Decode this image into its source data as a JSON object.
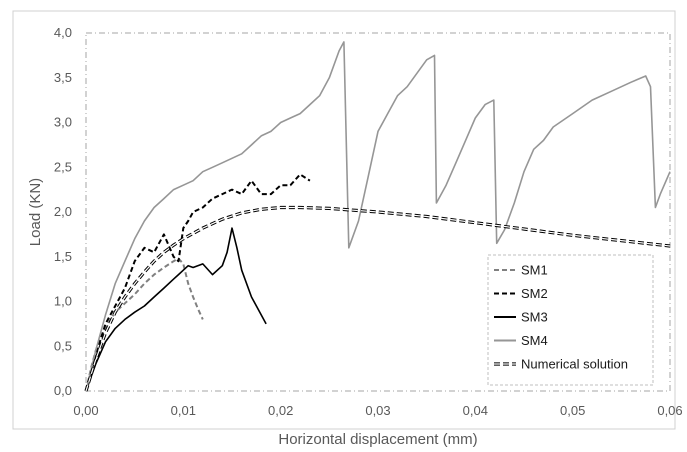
{
  "chart_data": {
    "type": "line",
    "xlabel": "Horizontal displacement (mm)",
    "ylabel": "Load (KN)",
    "xlim": [
      0,
      0.06
    ],
    "ylim": [
      0,
      4.0
    ],
    "x_ticks": [
      "0,00",
      "0,01",
      "0,02",
      "0,03",
      "0,04",
      "0,05",
      "0,06"
    ],
    "y_ticks": [
      "0,0",
      "0,5",
      "1,0",
      "1,5",
      "2,0",
      "2,5",
      "3,0",
      "3,5",
      "4,0"
    ],
    "grid": false,
    "legend_position": "bottom-right",
    "series": [
      {
        "name": "SM1",
        "color": "#808080",
        "dash": "dashed",
        "x": [
          0,
          0.0005,
          0.001,
          0.0015,
          0.002,
          0.0025,
          0.003,
          0.004,
          0.005,
          0.006,
          0.007,
          0.008,
          0.009,
          0.0095,
          0.01,
          0.0105,
          0.011,
          0.0115,
          0.012
        ],
        "y": [
          0.0,
          0.25,
          0.45,
          0.6,
          0.7,
          0.8,
          0.88,
          0.98,
          1.08,
          1.2,
          1.3,
          1.38,
          1.45,
          1.48,
          1.42,
          1.2,
          1.05,
          0.92,
          0.8
        ]
      },
      {
        "name": "SM2",
        "color": "#000000",
        "dash": "dashed",
        "x": [
          0,
          0.001,
          0.002,
          0.003,
          0.004,
          0.005,
          0.006,
          0.007,
          0.008,
          0.009,
          0.0095,
          0.01,
          0.0105,
          0.011,
          0.012,
          0.013,
          0.014,
          0.015,
          0.016,
          0.017,
          0.018,
          0.019,
          0.02,
          0.021,
          0.022,
          0.023
        ],
        "y": [
          0.0,
          0.4,
          0.75,
          0.95,
          1.15,
          1.45,
          1.6,
          1.55,
          1.75,
          1.5,
          1.45,
          1.82,
          1.9,
          2.0,
          2.05,
          2.15,
          2.2,
          2.25,
          2.2,
          2.35,
          2.2,
          2.2,
          2.3,
          2.3,
          2.42,
          2.35
        ]
      },
      {
        "name": "SM3",
        "color": "#000000",
        "dash": "solid",
        "x": [
          0,
          0.001,
          0.002,
          0.003,
          0.004,
          0.005,
          0.006,
          0.007,
          0.008,
          0.009,
          0.0095,
          0.01,
          0.0105,
          0.011,
          0.012,
          0.013,
          0.014,
          0.0145,
          0.015,
          0.0155,
          0.016,
          0.017,
          0.0185
        ],
        "y": [
          0.0,
          0.3,
          0.55,
          0.7,
          0.8,
          0.88,
          0.95,
          1.05,
          1.15,
          1.25,
          1.3,
          1.35,
          1.4,
          1.38,
          1.42,
          1.3,
          1.4,
          1.55,
          1.82,
          1.6,
          1.35,
          1.05,
          0.75
        ]
      },
      {
        "name": "SM4",
        "color": "#969696",
        "dash": "solid",
        "x": [
          0,
          0.001,
          0.002,
          0.003,
          0.004,
          0.005,
          0.006,
          0.007,
          0.008,
          0.009,
          0.01,
          0.011,
          0.012,
          0.013,
          0.014,
          0.015,
          0.016,
          0.017,
          0.018,
          0.019,
          0.02,
          0.021,
          0.022,
          0.023,
          0.024,
          0.025,
          0.026,
          0.0265,
          0.027,
          0.028,
          0.029,
          0.03,
          0.031,
          0.032,
          0.033,
          0.034,
          0.035,
          0.0358,
          0.036,
          0.037,
          0.038,
          0.039,
          0.04,
          0.041,
          0.0419,
          0.0422,
          0.043,
          0.044,
          0.045,
          0.046,
          0.047,
          0.048,
          0.05,
          0.052,
          0.054,
          0.056,
          0.0575,
          0.058,
          0.0585,
          0.059,
          0.06
        ],
        "y": [
          0.0,
          0.45,
          0.85,
          1.2,
          1.45,
          1.7,
          1.9,
          2.05,
          2.15,
          2.25,
          2.3,
          2.35,
          2.45,
          2.5,
          2.55,
          2.6,
          2.65,
          2.75,
          2.85,
          2.9,
          3.0,
          3.05,
          3.1,
          3.2,
          3.3,
          3.5,
          3.8,
          3.9,
          1.6,
          1.9,
          2.4,
          2.9,
          3.1,
          3.3,
          3.4,
          3.55,
          3.7,
          3.75,
          2.1,
          2.3,
          2.55,
          2.8,
          3.05,
          3.2,
          3.25,
          1.65,
          1.8,
          2.1,
          2.45,
          2.7,
          2.8,
          2.95,
          3.1,
          3.25,
          3.35,
          3.45,
          3.52,
          3.4,
          2.05,
          2.2,
          2.45
        ]
      },
      {
        "name": "Numerical solution",
        "color": "#000000",
        "dash": "double",
        "x": [
          0,
          0.001,
          0.002,
          0.003,
          0.004,
          0.005,
          0.006,
          0.007,
          0.008,
          0.009,
          0.01,
          0.012,
          0.014,
          0.016,
          0.018,
          0.02,
          0.022,
          0.025,
          0.03,
          0.035,
          0.04,
          0.045,
          0.05,
          0.055,
          0.06
        ],
        "y": [
          0.0,
          0.35,
          0.65,
          0.88,
          1.05,
          1.2,
          1.33,
          1.45,
          1.55,
          1.63,
          1.7,
          1.82,
          1.92,
          1.99,
          2.03,
          2.05,
          2.05,
          2.04,
          2.0,
          1.95,
          1.88,
          1.81,
          1.74,
          1.68,
          1.62
        ]
      }
    ]
  }
}
